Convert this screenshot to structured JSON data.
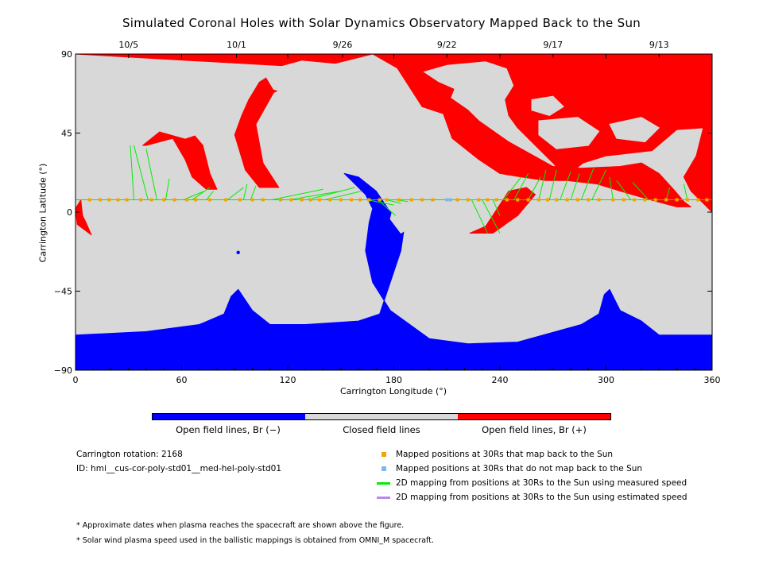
{
  "title": "Simulated Coronal Holes with Solar Dynamics Observatory Mapped Back to the Sun",
  "colors": {
    "positive": "#ff0000",
    "negative": "#0000ff",
    "closed": "#d8d8d8",
    "mapped_point": "#f5a300",
    "unmapped_point": "#7ab8ee",
    "measured_line": "#00ee00",
    "estimated_line": "#bb88ee"
  },
  "chart_data": {
    "type": "heatmap",
    "title": "Simulated Coronal Holes with Solar Dynamics Observatory Mapped Back to the Sun",
    "xlabel": "Carrington Longitude (°)",
    "ylabel": "Carrington Latitude (°)",
    "xlim": [
      0,
      360
    ],
    "ylim": [
      -90,
      90
    ],
    "x_ticks": [
      0,
      60,
      120,
      180,
      240,
      300,
      360
    ],
    "y_ticks": [
      90,
      45,
      0,
      -45,
      -90
    ],
    "y_tick_labels": [
      "90",
      "45",
      "0",
      "−45",
      "−90"
    ],
    "top_axis_dates": [
      {
        "label": "10/5",
        "lon": 30
      },
      {
        "label": "10/1",
        "lon": 91
      },
      {
        "label": "9/26",
        "lon": 151
      },
      {
        "label": "9/22",
        "lon": 210
      },
      {
        "label": "9/17",
        "lon": 270
      },
      {
        "label": "9/13",
        "lon": 330
      }
    ],
    "regions": [
      {
        "polarity": "positive",
        "label": "Open field lines, Br (+)",
        "polygons": [
          [
            [
              0,
              90
            ],
            [
              360,
              90
            ],
            [
              360,
              0
            ],
            [
              348,
              12
            ],
            [
              344,
              20
            ],
            [
              351,
              32
            ],
            [
              355,
              48
            ],
            [
              340,
              47
            ],
            [
              326,
              35
            ],
            [
              300,
              32
            ],
            [
              287,
              28
            ],
            [
              277,
              20
            ],
            [
              270,
              28
            ],
            [
              260,
              38
            ],
            [
              250,
              48
            ],
            [
              245,
              55
            ],
            [
              243,
              64
            ],
            [
              248,
              72
            ],
            [
              244,
              82
            ],
            [
              232,
              86
            ],
            [
              210,
              84
            ],
            [
              196,
              80
            ],
            [
              205,
              74
            ],
            [
              214,
              70
            ],
            [
              212,
              65
            ],
            [
              222,
              58
            ],
            [
              228,
              52
            ],
            [
              245,
              40
            ],
            [
              270,
              26
            ],
            [
              286,
              25
            ],
            [
              308,
              26
            ],
            [
              320,
              28
            ],
            [
              330,
              22
            ],
            [
              339,
              12
            ],
            [
              344,
              6
            ],
            [
              348,
              3
            ],
            [
              340,
              3
            ],
            [
              325,
              7
            ],
            [
              308,
              12
            ],
            [
              295,
              16
            ],
            [
              278,
              18
            ],
            [
              266,
              18
            ],
            [
              252,
              20
            ],
            [
              240,
              22
            ],
            [
              228,
              30
            ],
            [
              213,
              42
            ],
            [
              208,
              56
            ],
            [
              196,
              60
            ],
            [
              182,
              82
            ],
            [
              168,
              90
            ]
          ],
          [
            [
              0,
              90
            ],
            [
              168,
              90
            ],
            [
              140,
              83
            ],
            [
              118,
              83
            ],
            [
              104,
              74
            ],
            [
              98,
              64
            ],
            [
              94,
              55
            ],
            [
              90,
              44
            ],
            [
              96,
              24
            ],
            [
              104,
              14
            ],
            [
              115,
              14
            ],
            [
              106,
              28
            ],
            [
              102,
              50
            ],
            [
              112,
              68
            ],
            [
              140,
              82
            ]
          ],
          [
            [
              0,
              90
            ],
            [
              35,
              90
            ],
            [
              0,
              90
            ]
          ],
          [
            [
              3,
              7
            ],
            [
              4,
              -2
            ],
            [
              6,
              -6
            ],
            [
              9,
              -13
            ],
            [
              1,
              -7
            ],
            [
              0,
              2
            ]
          ],
          [
            [
              40,
              38
            ],
            [
              55,
              42
            ],
            [
              62,
              30
            ],
            [
              66,
              20
            ],
            [
              74,
              13
            ],
            [
              80,
              13
            ],
            [
              76,
              22
            ],
            [
              72,
              38
            ],
            [
              62,
              50
            ],
            [
              48,
              46
            ],
            [
              38,
              38
            ]
          ],
          [
            [
              223,
              -12
            ],
            [
              236,
              -12
            ],
            [
              250,
              -2
            ],
            [
              260,
              10
            ],
            [
              255,
              14
            ],
            [
              245,
              12
            ],
            [
              232,
              -8
            ]
          ]
        ]
      },
      {
        "polarity": "negative",
        "label": "Open field lines, Br (−)",
        "polygons": [
          [
            [
              0,
              -90
            ],
            [
              360,
              -90
            ],
            [
              360,
              -70
            ],
            [
              330,
              -70
            ],
            [
              320,
              -62
            ],
            [
              308,
              -56
            ],
            [
              302,
              -44
            ],
            [
              299,
              -47
            ],
            [
              296,
              -58
            ],
            [
              286,
              -64
            ],
            [
              250,
              -74
            ],
            [
              222,
              -75
            ],
            [
              200,
              -72
            ],
            [
              178,
              -56
            ],
            [
              168,
              -40
            ],
            [
              164,
              -22
            ],
            [
              166,
              -6
            ],
            [
              168,
              2
            ],
            [
              164,
              10
            ],
            [
              156,
              18
            ],
            [
              152,
              22
            ],
            [
              160,
              20
            ],
            [
              170,
              12
            ],
            [
              178,
              0
            ],
            [
              186,
              -8
            ],
            [
              184,
              -22
            ],
            [
              178,
              -40
            ],
            [
              172,
              -58
            ],
            [
              160,
              -62
            ],
            [
              130,
              -64
            ],
            [
              110,
              -64
            ],
            [
              100,
              -56
            ],
            [
              92,
              -44
            ],
            [
              88,
              -48
            ],
            [
              84,
              -58
            ],
            [
              70,
              -64
            ],
            [
              40,
              -68
            ],
            [
              0,
              -70
            ]
          ]
        ]
      }
    ],
    "tracks": {
      "mapped_positions_lat": 7,
      "mapped_lons": [
        8,
        14,
        19,
        24,
        29,
        37,
        43,
        50,
        56,
        63,
        68,
        76,
        85,
        93,
        100,
        106,
        116,
        122,
        128,
        133,
        138,
        144,
        150,
        156,
        161,
        166,
        172,
        176,
        183,
        190,
        196,
        202,
        216,
        222,
        228,
        233,
        238,
        244,
        250,
        256,
        262,
        267,
        272,
        278,
        284,
        290,
        296,
        304,
        310,
        316,
        322,
        328,
        334,
        340,
        346,
        352,
        357
      ],
      "unmapped_lons": [
        210
      ],
      "measured_speed_links": [
        [
          [
            33,
            7
          ],
          [
            31,
            38
          ]
        ],
        [
          [
            41,
            7
          ],
          [
            33,
            38
          ]
        ],
        [
          [
            46,
            7
          ],
          [
            40,
            36
          ]
        ],
        [
          [
            51,
            7
          ],
          [
            53,
            19
          ]
        ],
        [
          [
            61,
            7
          ],
          [
            73,
            12
          ]
        ],
        [
          [
            66,
            7
          ],
          [
            76,
            14
          ]
        ],
        [
          [
            74,
            7
          ],
          [
            78,
            12
          ]
        ],
        [
          [
            86,
            7
          ],
          [
            95,
            14
          ]
        ],
        [
          [
            95,
            7
          ],
          [
            97,
            16
          ]
        ],
        [
          [
            99,
            7
          ],
          [
            102,
            15
          ]
        ],
        [
          [
            111,
            7
          ],
          [
            140,
            13
          ]
        ],
        [
          [
            121,
            7
          ],
          [
            150,
            12
          ]
        ],
        [
          [
            131,
            7
          ],
          [
            158,
            14
          ]
        ],
        [
          [
            141,
            7
          ],
          [
            162,
            12
          ]
        ],
        [
          [
            165,
            7
          ],
          [
            180,
            4
          ]
        ],
        [
          [
            171,
            7
          ],
          [
            181,
            -2
          ]
        ],
        [
          [
            176,
            7
          ],
          [
            184,
            5
          ]
        ],
        [
          [
            181,
            7
          ],
          [
            188,
            6
          ]
        ],
        [
          [
            224,
            7
          ],
          [
            233,
            -12
          ]
        ],
        [
          [
            230,
            7
          ],
          [
            240,
            -12
          ]
        ],
        [
          [
            236,
            7
          ],
          [
            240,
            -2
          ]
        ],
        [
          [
            242,
            7
          ],
          [
            252,
            20
          ]
        ],
        [
          [
            248,
            7
          ],
          [
            256,
            22
          ]
        ],
        [
          [
            256,
            7
          ],
          [
            263,
            20
          ]
        ],
        [
          [
            262,
            7
          ],
          [
            266,
            24
          ]
        ],
        [
          [
            268,
            7
          ],
          [
            272,
            24
          ]
        ],
        [
          [
            274,
            7
          ],
          [
            280,
            23
          ]
        ],
        [
          [
            280,
            7
          ],
          [
            285,
            22
          ]
        ],
        [
          [
            286,
            7
          ],
          [
            293,
            25
          ]
        ],
        [
          [
            292,
            7
          ],
          [
            300,
            24
          ]
        ],
        [
          [
            304,
            7
          ],
          [
            302,
            20
          ]
        ],
        [
          [
            314,
            7
          ],
          [
            306,
            18
          ]
        ],
        [
          [
            324,
            7
          ],
          [
            315,
            17
          ]
        ],
        [
          [
            334,
            7
          ],
          [
            336,
            14
          ]
        ],
        [
          [
            346,
            7
          ],
          [
            344,
            16
          ]
        ]
      ],
      "estimated_speed_links": []
    }
  },
  "colorbar": {
    "labels": [
      "Open field lines, Br (−)",
      "Closed field lines",
      "Open field lines, Br (+)"
    ]
  },
  "info": {
    "rotation": "Carrington rotation: 2168",
    "id": "ID: hmi__cus-cor-poly-std01__med-hel-poly-std01"
  },
  "legend": [
    {
      "kind": "square",
      "color": "#f5a300",
      "label": "Mapped positions at 30Rs that map back to the Sun"
    },
    {
      "kind": "square",
      "color": "#7ab8ee",
      "label": "Mapped positions at 30Rs that do not map back to the Sun"
    },
    {
      "kind": "line",
      "color": "#00ee00",
      "label": "2D mapping from positions at 30Rs to the Sun using measured speed"
    },
    {
      "kind": "line",
      "color": "#bb88ee",
      "label": "2D mapping from positions at 30Rs to the Sun using estimated speed"
    }
  ],
  "notes": [
    "* Approximate dates when plasma reaches the spacecraft are shown above the figure.",
    "* Solar wind plasma speed used in the ballistic mappings is obtained from OMNI_M spacecraft."
  ]
}
